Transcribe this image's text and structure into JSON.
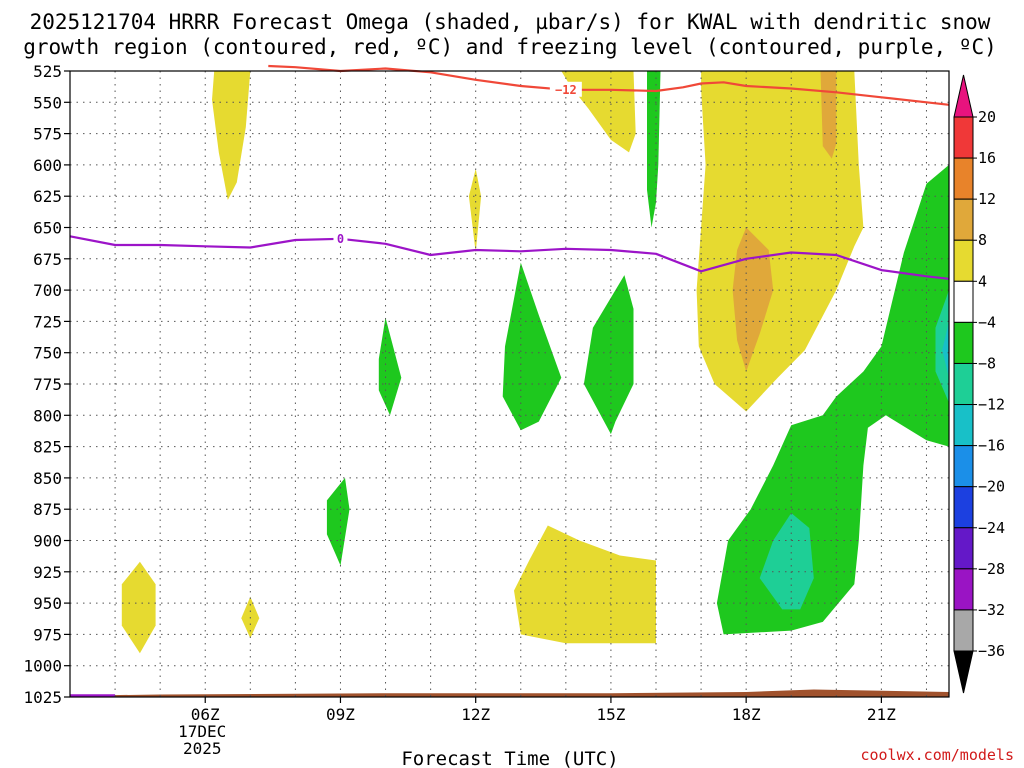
{
  "chart_data": {
    "type": "contour",
    "title_line1": "2025121704 HRRR Forecast Omega (shaded, µbar/s) for KWAL with dendritic snow",
    "title_line2": "growth region (contoured, red, ºC) and freezing level (contoured, purple, ºC)",
    "xlabel": "Forecast Time (UTC)",
    "ylabel": "",
    "credit": "coolwx.com/models",
    "x_range_hours": [
      3,
      22.5
    ],
    "y_range_hPa": [
      1025,
      525
    ],
    "x_ticks": [
      {
        "hour": 6,
        "label": "06Z",
        "sub1": "17DEC",
        "sub2": "2025"
      },
      {
        "hour": 9,
        "label": "09Z"
      },
      {
        "hour": 12,
        "label": "12Z"
      },
      {
        "hour": 15,
        "label": "15Z"
      },
      {
        "hour": 18,
        "label": "18Z"
      },
      {
        "hour": 21,
        "label": "21Z"
      }
    ],
    "x_grid_hours": [
      4,
      5,
      6,
      7,
      8,
      9,
      10,
      11,
      12,
      13,
      14,
      15,
      16,
      17,
      18,
      19,
      20,
      21,
      22
    ],
    "y_ticks": [
      525,
      550,
      575,
      600,
      625,
      650,
      675,
      700,
      725,
      750,
      775,
      800,
      825,
      850,
      875,
      900,
      925,
      950,
      975,
      1000,
      1025
    ],
    "colorbar": {
      "levels": [
        "20",
        "16",
        "12",
        "8",
        "4",
        "−4",
        "−8",
        "−12",
        "−16",
        "−20",
        "−24",
        "−28",
        "−32",
        "−36"
      ],
      "colors": [
        "#e8137e",
        "#f03838",
        "#e8832a",
        "#e0a83a",
        "#e6da30",
        "#ffffff",
        "#1ec81e",
        "#1ecf96",
        "#18c0c8",
        "#1b8fe8",
        "#1c40e0",
        "#6418c8",
        "#9a14c4",
        "#a8a8a8",
        "#000000"
      ]
    },
    "series": [
      {
        "name": "dendritic snow growth region (-12 ºC)",
        "color": "#f04838",
        "label": "−12",
        "points": [
          [
            7.4,
            521
          ],
          [
            8.0,
            522
          ],
          [
            9.0,
            525
          ],
          [
            10.0,
            523
          ],
          [
            11.0,
            526
          ],
          [
            12.0,
            532
          ],
          [
            13.0,
            537
          ],
          [
            14.0,
            540
          ],
          [
            15.0,
            540
          ],
          [
            16.0,
            541
          ],
          [
            16.6,
            538
          ],
          [
            17.0,
            535
          ],
          [
            17.5,
            534
          ],
          [
            18.0,
            537
          ],
          [
            19.0,
            539
          ],
          [
            20.0,
            542
          ],
          [
            21.0,
            546
          ],
          [
            22.0,
            550
          ],
          [
            22.5,
            552
          ]
        ]
      },
      {
        "name": "freezing level (0 ºC)",
        "color": "#9c14c8",
        "label": "0",
        "points": [
          [
            3.0,
            657
          ],
          [
            4.0,
            664
          ],
          [
            5.0,
            664
          ],
          [
            6.0,
            665
          ],
          [
            7.0,
            666
          ],
          [
            8.0,
            660
          ],
          [
            9.0,
            659
          ],
          [
            10.0,
            663
          ],
          [
            11.0,
            672
          ],
          [
            12.0,
            668
          ],
          [
            13.0,
            669
          ],
          [
            14.0,
            667
          ],
          [
            15.0,
            668
          ],
          [
            16.0,
            671
          ],
          [
            17.0,
            685
          ],
          [
            18.0,
            675
          ],
          [
            19.0,
            670
          ],
          [
            20.0,
            672
          ],
          [
            21.0,
            684
          ],
          [
            22.0,
            689
          ],
          [
            22.5,
            691
          ]
        ]
      }
    ],
    "shaded_regions": [
      {
        "level": "4 to 8",
        "color": "#e6da30",
        "points": [
          [
            6.2,
            525
          ],
          [
            7.0,
            525
          ],
          [
            6.9,
            570
          ],
          [
            6.7,
            614
          ],
          [
            6.5,
            628
          ],
          [
            6.3,
            590
          ],
          [
            6.15,
            548
          ]
        ]
      },
      {
        "level": "4 to 8",
        "color": "#e6da30",
        "points": [
          [
            12.0,
            603
          ],
          [
            12.12,
            625
          ],
          [
            12.0,
            670
          ],
          [
            11.85,
            625
          ]
        ]
      },
      {
        "level": "4 to 8",
        "color": "#e6da30",
        "points": [
          [
            13.9,
            525
          ],
          [
            15.5,
            525
          ],
          [
            15.55,
            575
          ],
          [
            15.4,
            590
          ],
          [
            15.0,
            580
          ],
          [
            14.5,
            555
          ],
          [
            14.1,
            537
          ]
        ]
      },
      {
        "level": "4 to 8",
        "color": "#e6da30",
        "points": [
          [
            17.0,
            525
          ],
          [
            20.4,
            525
          ],
          [
            20.5,
            600
          ],
          [
            20.6,
            650
          ],
          [
            20.4,
            665
          ],
          [
            20.0,
            700
          ],
          [
            19.3,
            748
          ],
          [
            18.7,
            770
          ],
          [
            18.0,
            797
          ],
          [
            17.3,
            775
          ],
          [
            16.95,
            745
          ],
          [
            16.9,
            700
          ],
          [
            17.0,
            650
          ],
          [
            17.1,
            600
          ],
          [
            17.0,
            540
          ]
        ]
      },
      {
        "level": "8 to 12",
        "color": "#e0a83a",
        "points": [
          [
            19.65,
            525
          ],
          [
            20.0,
            525
          ],
          [
            20.0,
            583
          ],
          [
            19.9,
            595
          ],
          [
            19.7,
            585
          ]
        ]
      },
      {
        "level": "8 to 12",
        "color": "#e0a83a",
        "points": [
          [
            18.0,
            650
          ],
          [
            18.5,
            668
          ],
          [
            18.6,
            700
          ],
          [
            18.3,
            735
          ],
          [
            18.0,
            765
          ],
          [
            17.8,
            740
          ],
          [
            17.7,
            700
          ],
          [
            17.8,
            668
          ]
        ]
      },
      {
        "level": "4 to 8",
        "color": "#e6da30",
        "points": [
          [
            4.55,
            917
          ],
          [
            4.9,
            935
          ],
          [
            4.9,
            968
          ],
          [
            4.55,
            990
          ],
          [
            4.15,
            968
          ],
          [
            4.15,
            935
          ]
        ]
      },
      {
        "level": "4 to 8",
        "color": "#e6da30",
        "points": [
          [
            7.0,
            945
          ],
          [
            7.2,
            962
          ],
          [
            7.0,
            978
          ],
          [
            6.8,
            962
          ]
        ]
      },
      {
        "level": "4 to 8",
        "color": "#e6da30",
        "points": [
          [
            13.6,
            888
          ],
          [
            14.3,
            900
          ],
          [
            15.2,
            912
          ],
          [
            16.0,
            916
          ],
          [
            16.0,
            982
          ],
          [
            14.0,
            982
          ],
          [
            13.0,
            975
          ],
          [
            12.85,
            940
          ],
          [
            13.2,
            915
          ]
        ]
      },
      {
        "level": "-4 to -8",
        "color": "#1ec81e",
        "points": [
          [
            16.1,
            525
          ],
          [
            16.05,
            600
          ],
          [
            16.0,
            630
          ],
          [
            15.9,
            650
          ],
          [
            15.8,
            620
          ],
          [
            15.8,
            560
          ],
          [
            15.8,
            525
          ]
        ]
      },
      {
        "level": "-4 to -8",
        "color": "#1ec81e",
        "points": [
          [
            10.0,
            722
          ],
          [
            10.35,
            770
          ],
          [
            10.1,
            800
          ],
          [
            9.85,
            780
          ],
          [
            9.85,
            755
          ]
        ]
      },
      {
        "level": "-4 to -8",
        "color": "#1ec81e",
        "points": [
          [
            13.0,
            678
          ],
          [
            13.4,
            720
          ],
          [
            13.9,
            770
          ],
          [
            13.4,
            805
          ],
          [
            13.0,
            812
          ],
          [
            12.6,
            785
          ],
          [
            12.65,
            745
          ]
        ]
      },
      {
        "level": "-4 to -8",
        "color": "#1ec81e",
        "points": [
          [
            15.3,
            688
          ],
          [
            15.5,
            715
          ],
          [
            15.5,
            775
          ],
          [
            15.1,
            805
          ],
          [
            15.0,
            815
          ],
          [
            14.4,
            775
          ],
          [
            14.6,
            730
          ]
        ]
      },
      {
        "level": "-4 to -8",
        "color": "#1ec81e",
        "points": [
          [
            9.1,
            850
          ],
          [
            9.2,
            875
          ],
          [
            9.0,
            920
          ],
          [
            8.7,
            895
          ],
          [
            8.7,
            868
          ]
        ]
      },
      {
        "level": "-4 to -8",
        "color": "#1ec81e",
        "points": [
          [
            22.5,
            600
          ],
          [
            22.5,
            825
          ],
          [
            22.0,
            820
          ],
          [
            21.1,
            800
          ],
          [
            20.7,
            810
          ],
          [
            20.6,
            840
          ],
          [
            20.5,
            900
          ],
          [
            20.4,
            935
          ],
          [
            19.7,
            965
          ],
          [
            19.0,
            972
          ],
          [
            17.5,
            975
          ],
          [
            17.35,
            950
          ],
          [
            17.6,
            900
          ],
          [
            18.1,
            875
          ],
          [
            18.6,
            840
          ],
          [
            19.0,
            808
          ],
          [
            19.7,
            800
          ],
          [
            20.0,
            785
          ],
          [
            20.6,
            765
          ],
          [
            21.0,
            745
          ],
          [
            21.5,
            670
          ],
          [
            22.0,
            615
          ]
        ]
      },
      {
        "level": "-8 to -12",
        "color": "#1ecf96",
        "points": [
          [
            19.0,
            878
          ],
          [
            19.4,
            890
          ],
          [
            19.5,
            930
          ],
          [
            19.2,
            955
          ],
          [
            18.8,
            955
          ],
          [
            18.3,
            930
          ],
          [
            18.6,
            900
          ]
        ]
      },
      {
        "level": "-8 to -12",
        "color": "#1ecf96",
        "points": [
          [
            22.5,
            700
          ],
          [
            22.5,
            790
          ],
          [
            22.2,
            765
          ],
          [
            22.2,
            730
          ]
        ]
      },
      {
        "level": "-12 to -16",
        "color": "#18c0c8",
        "points": [
          [
            22.5,
            725
          ],
          [
            22.5,
            770
          ],
          [
            22.35,
            748
          ]
        ]
      }
    ],
    "terrain": {
      "color": "#a0522d",
      "surface_hPa": [
        [
          3,
          1024
        ],
        [
          5,
          1023
        ],
        [
          10,
          1022
        ],
        [
          15,
          1022
        ],
        [
          18,
          1021
        ],
        [
          19.5,
          1019
        ],
        [
          22.5,
          1021
        ]
      ]
    },
    "freezing_level_surface": {
      "color": "#9c14c8",
      "points": [
        [
          3,
          1024
        ],
        [
          4,
          1024
        ]
      ]
    }
  }
}
